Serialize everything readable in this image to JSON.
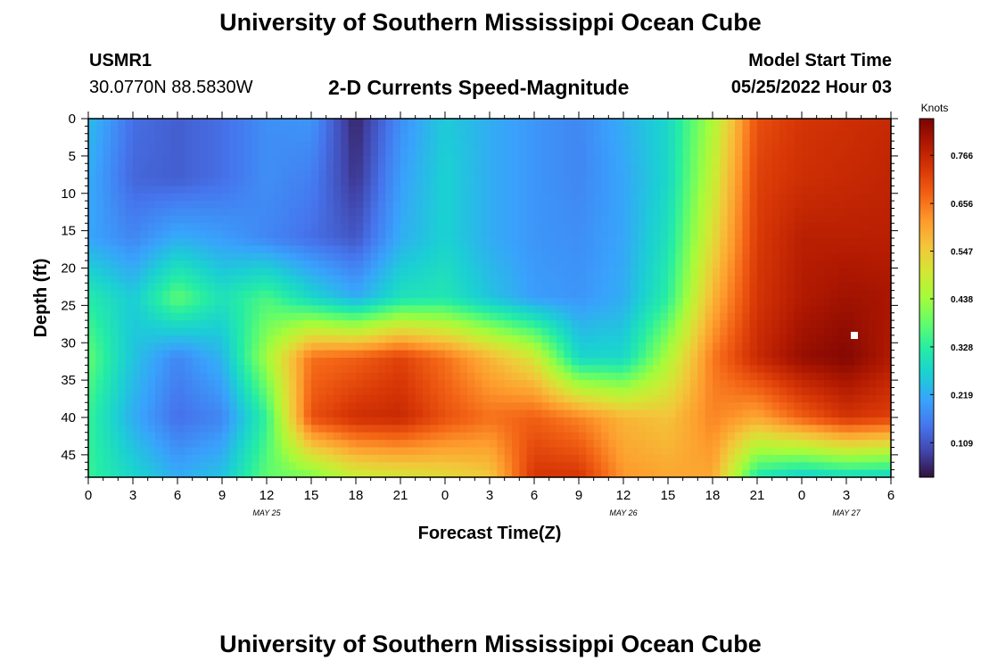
{
  "header": {
    "title": "University of Southern Mississippi Ocean Cube",
    "station_id": "USMR1",
    "coordinates": "30.0770N  88.5830W",
    "plot_title": "2-D Currents Speed-Magnitude",
    "model_start_label": "Model Start Time",
    "model_start_value": "05/25/2022 Hour 03"
  },
  "footer": {
    "title": "University of Southern Mississippi Ocean Cube"
  },
  "chart_data": {
    "type": "heatmap",
    "title": "2-D Currents Speed-Magnitude",
    "xlabel": "Forecast Time(Z)",
    "ylabel": "Depth (ft)",
    "colorbar_label": "Knots",
    "x_tick_labels": [
      "0",
      "3",
      "6",
      "9",
      "12",
      "15",
      "18",
      "21",
      "0",
      "3",
      "6",
      "9",
      "12",
      "15",
      "18",
      "21",
      "0",
      "3",
      "6"
    ],
    "x_date_labels": [
      {
        "label": "MAY 25",
        "hour_index": 12
      },
      {
        "label": "MAY 26",
        "hour_index": 36
      },
      {
        "label": "MAY 27",
        "hour_index": 51
      }
    ],
    "x_hours_range": [
      0,
      54
    ],
    "y_ticks": [
      0,
      5,
      10,
      15,
      20,
      25,
      30,
      35,
      40,
      45
    ],
    "y_range": [
      0,
      48
    ],
    "colorbar_ticks": [
      0.109,
      0.219,
      0.328,
      0.438,
      0.547,
      0.656,
      0.766
    ],
    "value_range": [
      0.03,
      0.85
    ],
    "colormap": [
      "#30123b",
      "#4145ab",
      "#4675ed",
      "#39a2fc",
      "#1bcfd4",
      "#24eca6",
      "#61fc6c",
      "#a4fc3b",
      "#d1e834",
      "#f3c63a",
      "#fe9b2d",
      "#f36315",
      "#d93806",
      "#b11901",
      "#7a0402"
    ],
    "grid_depths": [
      0,
      8,
      16,
      24,
      32,
      40,
      48
    ],
    "grid_hours": [
      0,
      3,
      6,
      9,
      12,
      15,
      18,
      21,
      24,
      27,
      30,
      33,
      36,
      39,
      42,
      45,
      48,
      51,
      54
    ],
    "values": [
      [
        0.24,
        0.14,
        0.12,
        0.14,
        0.18,
        0.19,
        0.05,
        0.18,
        0.26,
        0.22,
        0.19,
        0.17,
        0.22,
        0.28,
        0.45,
        0.7,
        0.74,
        0.75,
        0.76
      ],
      [
        0.22,
        0.13,
        0.12,
        0.14,
        0.18,
        0.16,
        0.07,
        0.2,
        0.27,
        0.22,
        0.19,
        0.17,
        0.21,
        0.28,
        0.48,
        0.72,
        0.75,
        0.76,
        0.77
      ],
      [
        0.21,
        0.17,
        0.22,
        0.2,
        0.17,
        0.14,
        0.11,
        0.22,
        0.27,
        0.22,
        0.19,
        0.18,
        0.21,
        0.3,
        0.52,
        0.73,
        0.78,
        0.78,
        0.78
      ],
      [
        0.32,
        0.26,
        0.38,
        0.3,
        0.36,
        0.28,
        0.22,
        0.3,
        0.31,
        0.25,
        0.2,
        0.19,
        0.22,
        0.33,
        0.58,
        0.74,
        0.79,
        0.81,
        0.8
      ],
      [
        0.38,
        0.25,
        0.17,
        0.23,
        0.44,
        0.66,
        0.68,
        0.72,
        0.66,
        0.58,
        0.5,
        0.28,
        0.28,
        0.45,
        0.65,
        0.76,
        0.82,
        0.84,
        0.79
      ],
      [
        0.34,
        0.22,
        0.14,
        0.17,
        0.34,
        0.7,
        0.75,
        0.76,
        0.7,
        0.66,
        0.68,
        0.64,
        0.58,
        0.56,
        0.64,
        0.6,
        0.68,
        0.74,
        0.72
      ],
      [
        0.34,
        0.28,
        0.22,
        0.25,
        0.38,
        0.4,
        0.48,
        0.5,
        0.52,
        0.55,
        0.74,
        0.74,
        0.62,
        0.6,
        0.6,
        0.31,
        0.26,
        0.28,
        0.27
      ]
    ]
  }
}
